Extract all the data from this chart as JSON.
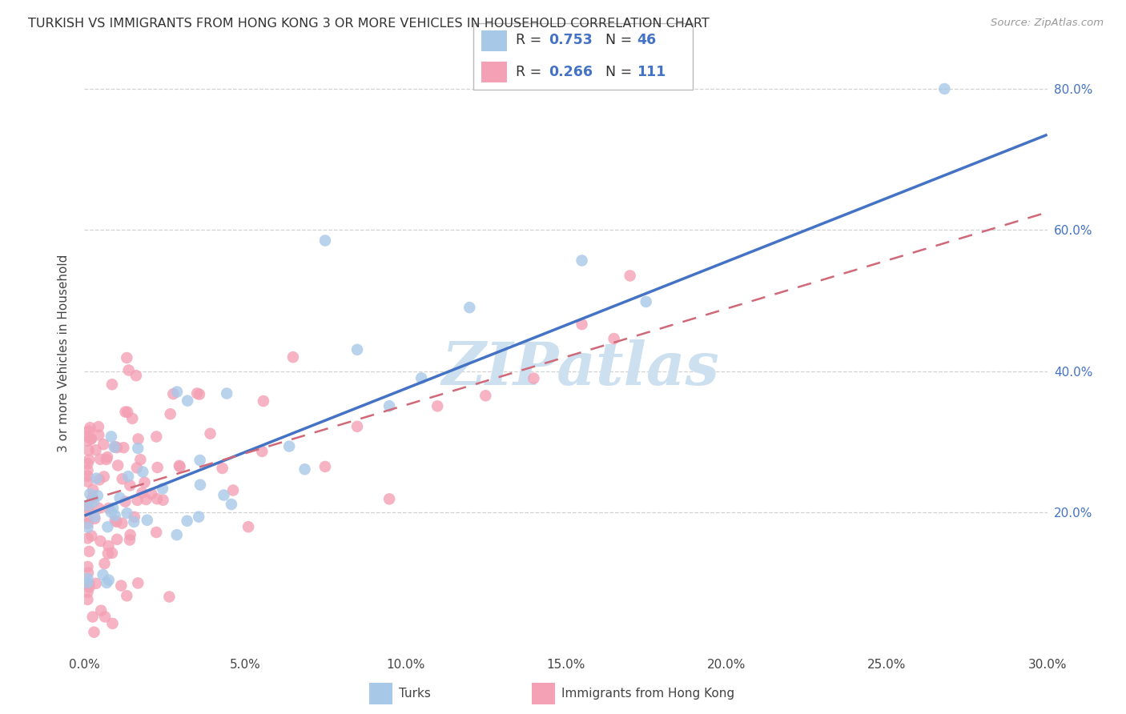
{
  "title": "TURKISH VS IMMIGRANTS FROM HONG KONG 3 OR MORE VEHICLES IN HOUSEHOLD CORRELATION CHART",
  "source": "Source: ZipAtlas.com",
  "xlim": [
    0.0,
    0.3
  ],
  "ylim": [
    0.0,
    0.85
  ],
  "x_ticks": [
    0.0,
    0.05,
    0.1,
    0.15,
    0.2,
    0.25,
    0.3
  ],
  "x_tick_labels": [
    "0.0%",
    "5.0%",
    "10.0%",
    "15.0%",
    "20.0%",
    "25.0%",
    "30.0%"
  ],
  "y_ticks": [
    0.2,
    0.4,
    0.6,
    0.8
  ],
  "y_tick_labels": [
    "20.0%",
    "40.0%",
    "60.0%",
    "80.0%"
  ],
  "legend_r1": "0.753",
  "legend_n1": "46",
  "legend_r2": "0.266",
  "legend_n2": "111",
  "color_blue": "#a8c8e8",
  "color_pink": "#f4a0b5",
  "line_blue": "#4472c4",
  "line_pink": "#d06878",
  "watermark_text": "ZIPatlas",
  "watermark_color": "#cce0f0",
  "ylabel": "3 or more Vehicles in Household",
  "legend_label1": "Turks",
  "legend_label2": "Immigrants from Hong Kong",
  "blue_line_x": [
    0.0,
    0.3
  ],
  "blue_line_y": [
    0.195,
    0.735
  ],
  "pink_line_x": [
    0.0,
    0.3
  ],
  "pink_line_y": [
    0.215,
    0.625
  ]
}
